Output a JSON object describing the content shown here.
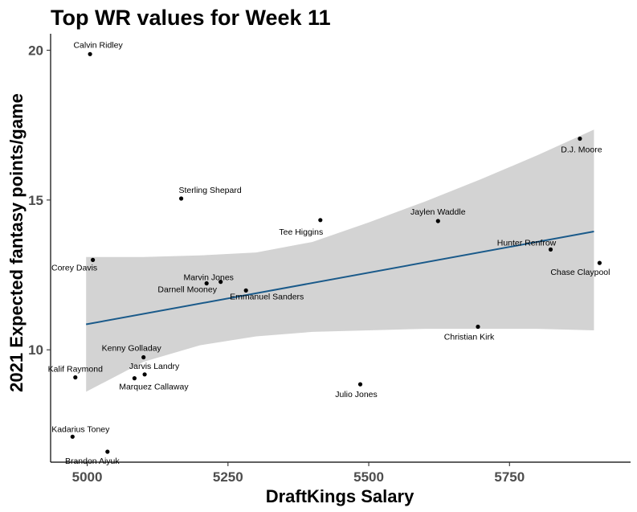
{
  "chart_data": {
    "type": "scatter",
    "title": "Top WR values for Week 11",
    "xlabel": "DraftKings Salary",
    "ylabel": "2021 Expected fantasy points/game",
    "xlim": [
      4935,
      5965
    ],
    "ylim": [
      6.25,
      20.55
    ],
    "xticks": [
      5000,
      5250,
      5500,
      5750
    ],
    "yticks": [
      10,
      15,
      20
    ],
    "grid": false,
    "legend": "none",
    "colors": {
      "point": "#000000",
      "trend_line": "#1a5a8a",
      "confidence_band": "#d3d3d3"
    },
    "points": [
      {
        "label": "Calvin Ridley",
        "x": 5005,
        "y": 19.87
      },
      {
        "label": "D.J. Moore",
        "x": 5875,
        "y": 17.05
      },
      {
        "label": "Sterling Shepard",
        "x": 5167,
        "y": 15.05
      },
      {
        "label": "Tee Higgins",
        "x": 5414,
        "y": 14.33
      },
      {
        "label": "Jaylen Waddle",
        "x": 5623,
        "y": 14.3
      },
      {
        "label": "Hunter Renfrow",
        "x": 5823,
        "y": 13.35
      },
      {
        "label": "Chase Claypool",
        "x": 5910,
        "y": 12.9
      },
      {
        "label": "Corey Davis",
        "x": 5010,
        "y": 13.0
      },
      {
        "label": "Marvin Jones",
        "x": 5237,
        "y": 12.27
      },
      {
        "label": "Darnell Mooney",
        "x": 5212,
        "y": 12.22
      },
      {
        "label": "Emmanuel Sanders",
        "x": 5282,
        "y": 11.98
      },
      {
        "label": "Christian Kirk",
        "x": 5694,
        "y": 10.77
      },
      {
        "label": "Kenny Golladay",
        "x": 5100,
        "y": 9.75
      },
      {
        "label": "Jarvis Landry",
        "x": 5102,
        "y": 9.18
      },
      {
        "label": "Kalif Raymond",
        "x": 4979,
        "y": 9.08
      },
      {
        "label": "Marquez Callaway",
        "x": 5084,
        "y": 9.05
      },
      {
        "label": "Julio Jones",
        "x": 5485,
        "y": 8.85
      },
      {
        "label": "Kadarius Toney",
        "x": 4974,
        "y": 7.1
      },
      {
        "label": "Brandon Aiyuk",
        "x": 5036,
        "y": 6.6
      }
    ],
    "trend": {
      "type": "linear",
      "line": [
        [
          4998,
          10.85
        ],
        [
          5900,
          13.95
        ]
      ],
      "band_upper": [
        [
          4998,
          13.1
        ],
        [
          5100,
          13.1
        ],
        [
          5200,
          13.15
        ],
        [
          5300,
          13.25
        ],
        [
          5400,
          13.6
        ],
        [
          5500,
          14.25
        ],
        [
          5600,
          14.95
        ],
        [
          5700,
          15.7
        ],
        [
          5800,
          16.5
        ],
        [
          5900,
          17.35
        ]
      ],
      "band_lower": [
        [
          4998,
          8.6
        ],
        [
          5100,
          9.6
        ],
        [
          5200,
          10.15
        ],
        [
          5300,
          10.45
        ],
        [
          5400,
          10.6
        ],
        [
          5500,
          10.65
        ],
        [
          5600,
          10.7
        ],
        [
          5700,
          10.7
        ],
        [
          5800,
          10.7
        ],
        [
          5900,
          10.65
        ]
      ]
    }
  }
}
